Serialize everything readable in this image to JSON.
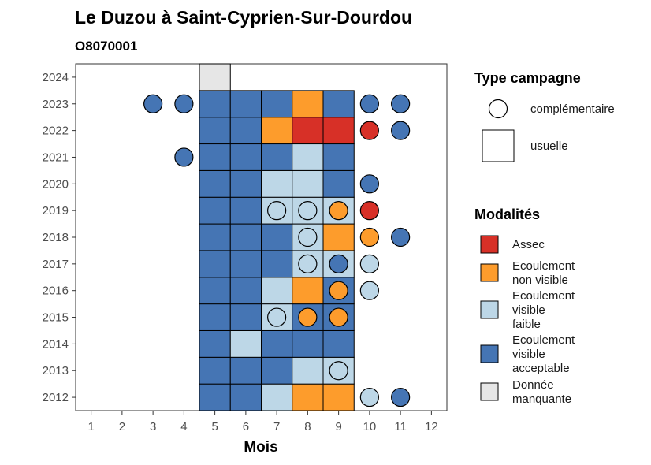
{
  "chart_data": {
    "type": "heatmap",
    "title": "Le Duzou à Saint-Cyprien-Sur-Dourdou",
    "subtitle": "O8070001",
    "xlabel": "Mois",
    "ylabel": "",
    "x_ticks": [
      "1",
      "2",
      "3",
      "4",
      "5",
      "6",
      "7",
      "8",
      "9",
      "10",
      "11",
      "12"
    ],
    "y_ticks": [
      "2012",
      "2013",
      "2014",
      "2015",
      "2016",
      "2017",
      "2018",
      "2019",
      "2020",
      "2021",
      "2022",
      "2023",
      "2024"
    ],
    "xlim": [
      0.5,
      12.5
    ],
    "ylim": [
      2011.5,
      2024.5
    ],
    "grid": false,
    "legend_position": "right",
    "legend_type": {
      "title": "Type campagne",
      "items": [
        {
          "key": "complementaire",
          "label": "complémentaire",
          "shape": "circle"
        },
        {
          "key": "usuelle",
          "label": "usuelle",
          "shape": "square"
        }
      ]
    },
    "legend_modalites": {
      "title": "Modalités",
      "items": [
        {
          "key": "A",
          "lines": [
            "Assec"
          ],
          "color": "#d73027"
        },
        {
          "key": "NV",
          "lines": [
            "Ecoulement",
            "non visible"
          ],
          "color": "#fd9c2c"
        },
        {
          "key": "F",
          "lines": [
            "Ecoulement",
            "visible",
            "faible"
          ],
          "color": "#bdd7e7"
        },
        {
          "key": "V",
          "lines": [
            "Ecoulement",
            "visible",
            "acceptable"
          ],
          "color": "#4575b4"
        },
        {
          "key": "M",
          "lines": [
            "Donnée",
            "manquante"
          ],
          "color": "#e6e6e6"
        }
      ]
    },
    "usuelle": [
      {
        "year": 2012,
        "month": 5,
        "value": "V"
      },
      {
        "year": 2012,
        "month": 6,
        "value": "V"
      },
      {
        "year": 2012,
        "month": 7,
        "value": "F"
      },
      {
        "year": 2012,
        "month": 8,
        "value": "NV"
      },
      {
        "year": 2012,
        "month": 9,
        "value": "NV"
      },
      {
        "year": 2013,
        "month": 5,
        "value": "V"
      },
      {
        "year": 2013,
        "month": 6,
        "value": "V"
      },
      {
        "year": 2013,
        "month": 7,
        "value": "V"
      },
      {
        "year": 2013,
        "month": 8,
        "value": "F"
      },
      {
        "year": 2013,
        "month": 9,
        "value": "F"
      },
      {
        "year": 2014,
        "month": 5,
        "value": "V"
      },
      {
        "year": 2014,
        "month": 6,
        "value": "F"
      },
      {
        "year": 2014,
        "month": 7,
        "value": "V"
      },
      {
        "year": 2014,
        "month": 8,
        "value": "V"
      },
      {
        "year": 2014,
        "month": 9,
        "value": "V"
      },
      {
        "year": 2015,
        "month": 5,
        "value": "V"
      },
      {
        "year": 2015,
        "month": 6,
        "value": "V"
      },
      {
        "year": 2015,
        "month": 7,
        "value": "F"
      },
      {
        "year": 2015,
        "month": 8,
        "value": "V"
      },
      {
        "year": 2015,
        "month": 9,
        "value": "V"
      },
      {
        "year": 2016,
        "month": 5,
        "value": "V"
      },
      {
        "year": 2016,
        "month": 6,
        "value": "V"
      },
      {
        "year": 2016,
        "month": 7,
        "value": "F"
      },
      {
        "year": 2016,
        "month": 8,
        "value": "NV"
      },
      {
        "year": 2016,
        "month": 9,
        "value": "V"
      },
      {
        "year": 2017,
        "month": 5,
        "value": "V"
      },
      {
        "year": 2017,
        "month": 6,
        "value": "V"
      },
      {
        "year": 2017,
        "month": 7,
        "value": "V"
      },
      {
        "year": 2017,
        "month": 8,
        "value": "F"
      },
      {
        "year": 2017,
        "month": 9,
        "value": "F"
      },
      {
        "year": 2018,
        "month": 5,
        "value": "V"
      },
      {
        "year": 2018,
        "month": 6,
        "value": "V"
      },
      {
        "year": 2018,
        "month": 7,
        "value": "V"
      },
      {
        "year": 2018,
        "month": 8,
        "value": "F"
      },
      {
        "year": 2018,
        "month": 9,
        "value": "NV"
      },
      {
        "year": 2019,
        "month": 5,
        "value": "V"
      },
      {
        "year": 2019,
        "month": 6,
        "value": "V"
      },
      {
        "year": 2019,
        "month": 7,
        "value": "F"
      },
      {
        "year": 2019,
        "month": 8,
        "value": "F"
      },
      {
        "year": 2019,
        "month": 9,
        "value": "F"
      },
      {
        "year": 2020,
        "month": 5,
        "value": "V"
      },
      {
        "year": 2020,
        "month": 6,
        "value": "V"
      },
      {
        "year": 2020,
        "month": 7,
        "value": "F"
      },
      {
        "year": 2020,
        "month": 8,
        "value": "F"
      },
      {
        "year": 2020,
        "month": 9,
        "value": "V"
      },
      {
        "year": 2021,
        "month": 5,
        "value": "V"
      },
      {
        "year": 2021,
        "month": 6,
        "value": "V"
      },
      {
        "year": 2021,
        "month": 7,
        "value": "V"
      },
      {
        "year": 2021,
        "month": 8,
        "value": "F"
      },
      {
        "year": 2021,
        "month": 9,
        "value": "V"
      },
      {
        "year": 2022,
        "month": 5,
        "value": "V"
      },
      {
        "year": 2022,
        "month": 6,
        "value": "V"
      },
      {
        "year": 2022,
        "month": 7,
        "value": "NV"
      },
      {
        "year": 2022,
        "month": 8,
        "value": "A"
      },
      {
        "year": 2022,
        "month": 9,
        "value": "A"
      },
      {
        "year": 2023,
        "month": 5,
        "value": "V"
      },
      {
        "year": 2023,
        "month": 6,
        "value": "V"
      },
      {
        "year": 2023,
        "month": 7,
        "value": "V"
      },
      {
        "year": 2023,
        "month": 8,
        "value": "NV"
      },
      {
        "year": 2023,
        "month": 9,
        "value": "V"
      },
      {
        "year": 2024,
        "month": 5,
        "value": "M"
      }
    ],
    "complementaire": [
      {
        "year": 2012,
        "month": 10,
        "value": "F"
      },
      {
        "year": 2012,
        "month": 11,
        "value": "V"
      },
      {
        "year": 2013,
        "month": 9,
        "value": "F"
      },
      {
        "year": 2015,
        "month": 7,
        "value": "F"
      },
      {
        "year": 2015,
        "month": 8,
        "value": "NV"
      },
      {
        "year": 2015,
        "month": 9,
        "value": "NV"
      },
      {
        "year": 2016,
        "month": 9,
        "value": "NV"
      },
      {
        "year": 2016,
        "month": 10,
        "value": "F"
      },
      {
        "year": 2017,
        "month": 8,
        "value": "F"
      },
      {
        "year": 2017,
        "month": 9,
        "value": "V"
      },
      {
        "year": 2017,
        "month": 10,
        "value": "F"
      },
      {
        "year": 2018,
        "month": 8,
        "value": "F"
      },
      {
        "year": 2018,
        "month": 10,
        "value": "NV"
      },
      {
        "year": 2018,
        "month": 11,
        "value": "V"
      },
      {
        "year": 2019,
        "month": 7,
        "value": "F"
      },
      {
        "year": 2019,
        "month": 8,
        "value": "F"
      },
      {
        "year": 2019,
        "month": 9,
        "value": "NV"
      },
      {
        "year": 2019,
        "month": 10,
        "value": "A"
      },
      {
        "year": 2020,
        "month": 10,
        "value": "V"
      },
      {
        "year": 2021,
        "month": 4,
        "value": "V"
      },
      {
        "year": 2022,
        "month": 10,
        "value": "A"
      },
      {
        "year": 2022,
        "month": 11,
        "value": "V"
      },
      {
        "year": 2023,
        "month": 3,
        "value": "V"
      },
      {
        "year": 2023,
        "month": 4,
        "value": "V"
      },
      {
        "year": 2023,
        "month": 10,
        "value": "V"
      },
      {
        "year": 2023,
        "month": 11,
        "value": "V"
      }
    ]
  }
}
